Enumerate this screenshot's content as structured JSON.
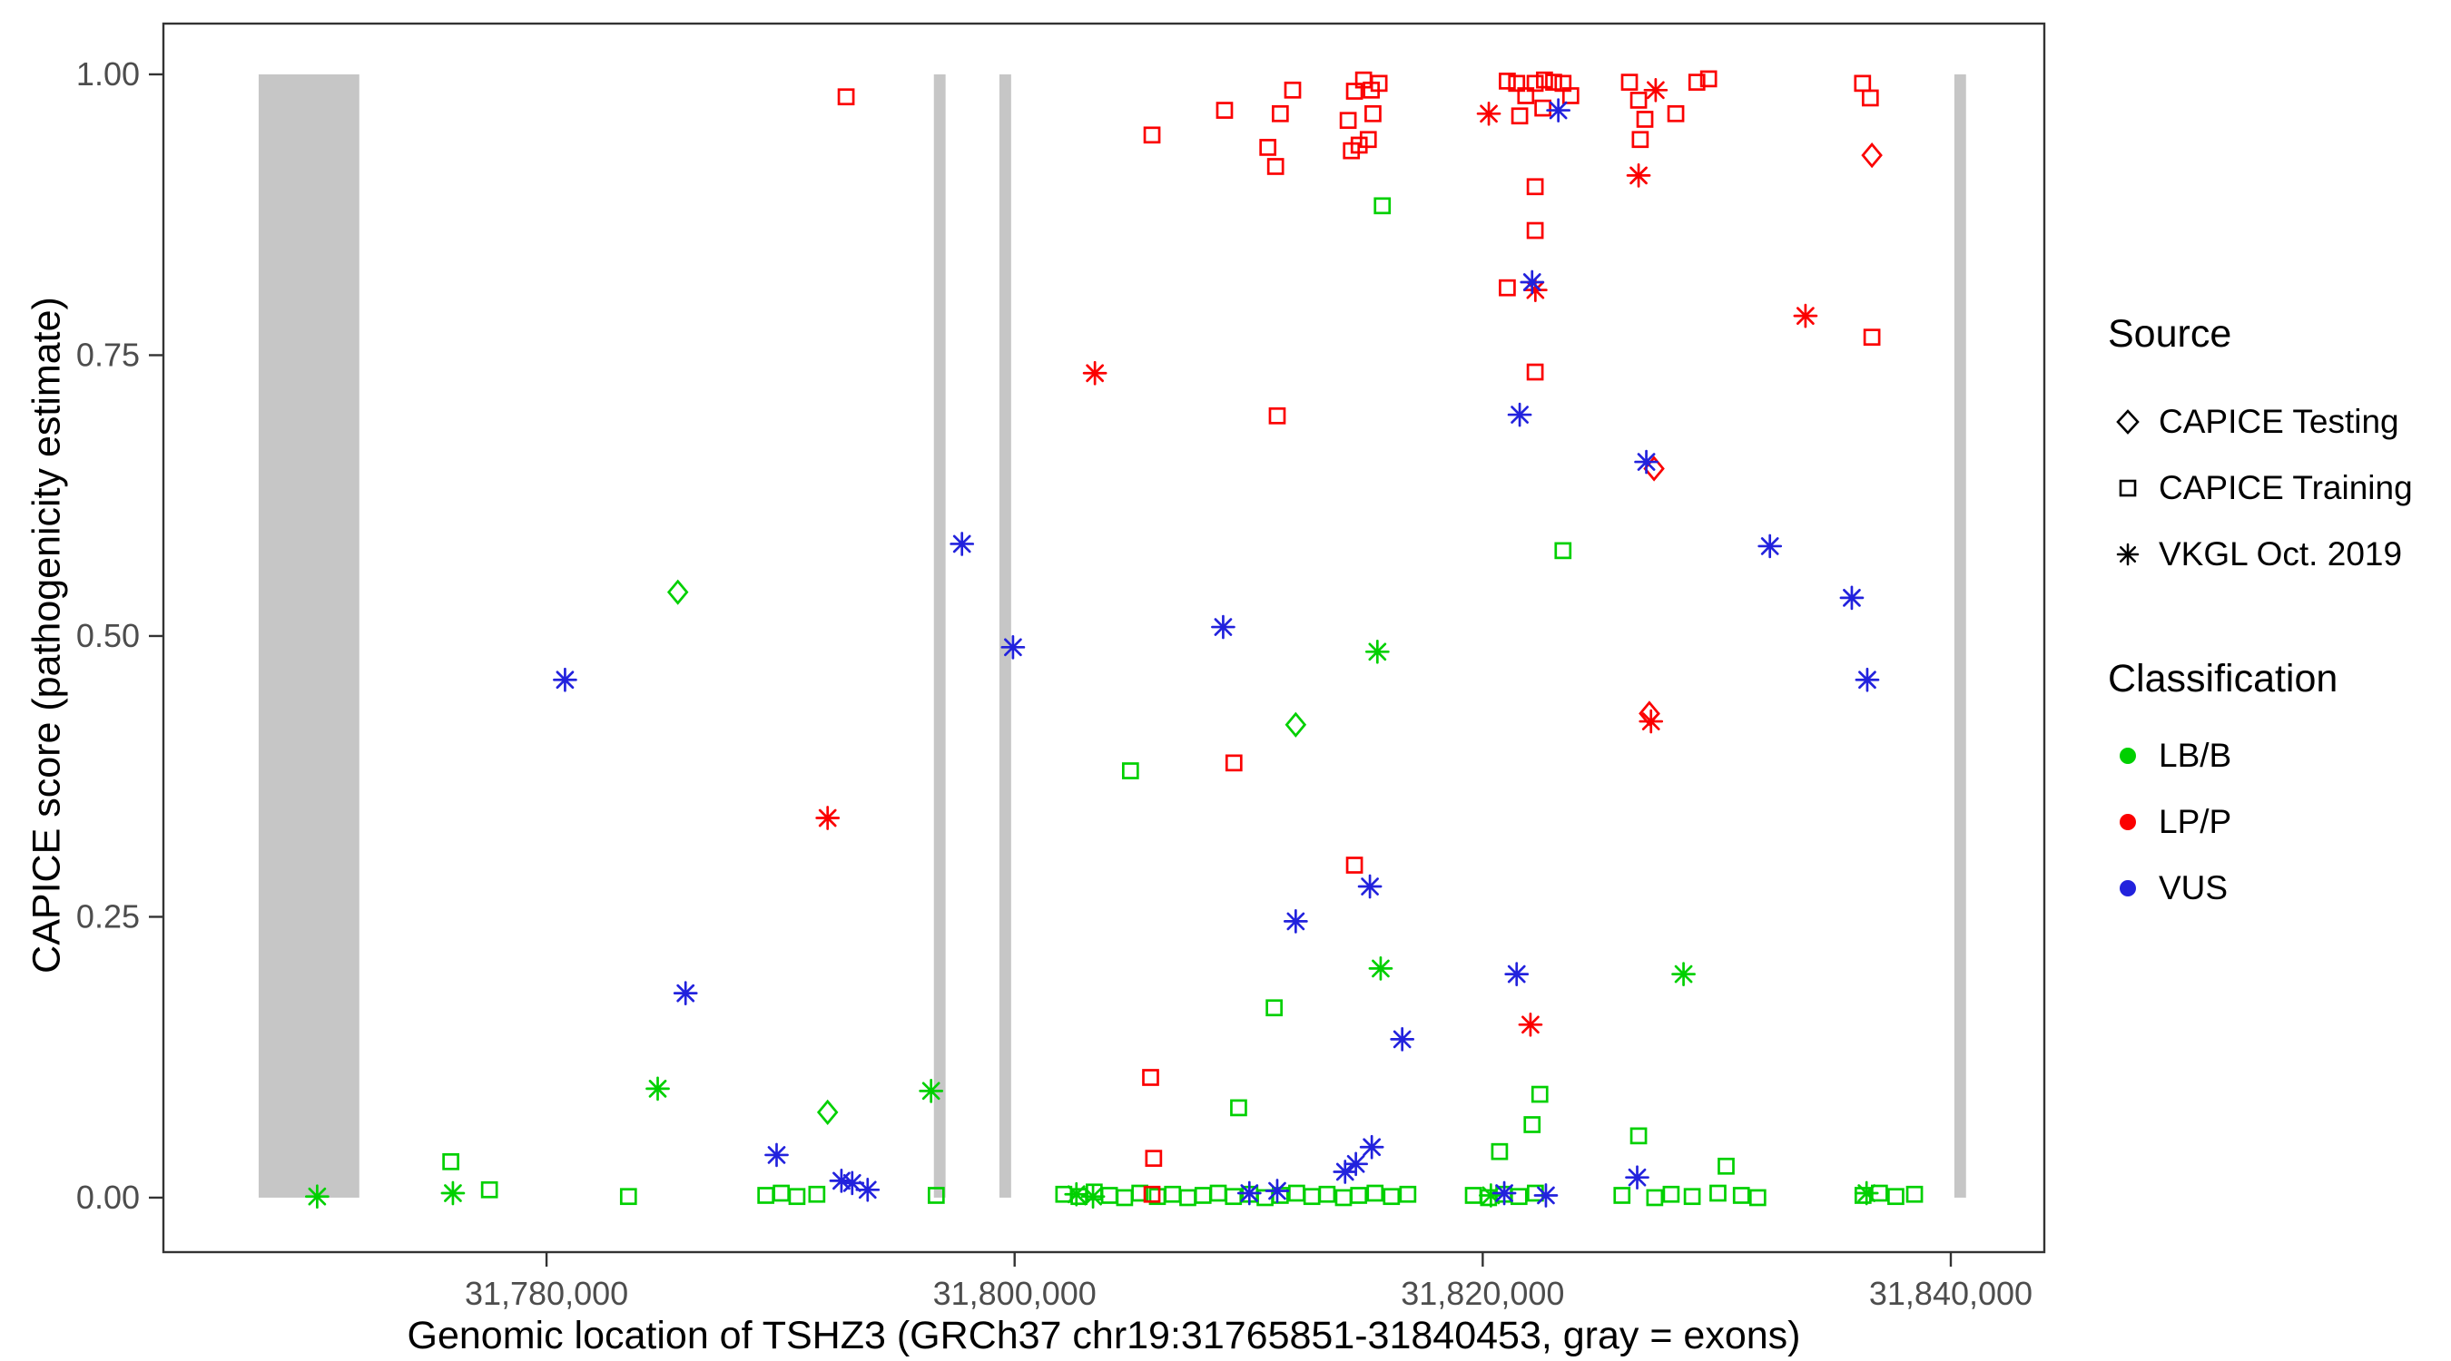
{
  "chart_data": {
    "type": "scatter",
    "title": "",
    "xlabel": "Genomic location of TSHZ3 (GRCh37 chr19:31765851-31840453, gray = exons)",
    "ylabel": "CAPICE score (pathogenicity estimate)",
    "xlim": [
      31763630,
      31843995
    ],
    "ylim": [
      -0.0485,
      1.0452
    ],
    "x_ticks": [
      {
        "value": 31780000,
        "label": "31,780,000"
      },
      {
        "value": 31800000,
        "label": "31,800,000"
      },
      {
        "value": 31820000,
        "label": "31,820,000"
      },
      {
        "value": 31840000,
        "label": "31,840,000"
      }
    ],
    "y_ticks": [
      {
        "value": 0.0,
        "label": "0.00"
      },
      {
        "value": 0.25,
        "label": "0.25"
      },
      {
        "value": 0.5,
        "label": "0.50"
      },
      {
        "value": 0.75,
        "label": "0.75"
      },
      {
        "value": 1.0,
        "label": "1.00"
      }
    ],
    "grid": false,
    "exon_color": "#c6c6c6",
    "exons": [
      [
        31767700,
        31772000
      ],
      [
        31796550,
        31797050
      ],
      [
        31799350,
        31799850
      ],
      [
        31840150,
        31840650
      ]
    ],
    "legend": {
      "position": "right",
      "source_title": "Source",
      "sources": [
        {
          "id": "testing",
          "label": "CAPICE Testing",
          "marker": "diamond"
        },
        {
          "id": "training",
          "label": "CAPICE Training",
          "marker": "square"
        },
        {
          "id": "vkgl",
          "label": "VKGL Oct. 2019",
          "marker": "asterisk"
        }
      ],
      "class_title": "Classification",
      "classes": [
        {
          "id": "LB/B",
          "label": "LB/B",
          "color": "#00d000"
        },
        {
          "id": "LP/P",
          "label": "LP/P",
          "color": "#fb0000"
        },
        {
          "id": "VUS",
          "label": "VUS",
          "color": "#2222dd"
        }
      ]
    },
    "points": [
      [
        31770200,
        0.001,
        "vkgl",
        "LB/B"
      ],
      [
        31776000,
        0.004,
        "vkgl",
        "LB/B"
      ],
      [
        31784750,
        0.097,
        "vkgl",
        "LB/B"
      ],
      [
        31796430,
        0.095,
        "vkgl",
        "LB/B"
      ],
      [
        31815500,
        0.486,
        "vkgl",
        "LB/B"
      ],
      [
        31815640,
        0.204,
        "vkgl",
        "LB/B"
      ],
      [
        31828580,
        0.199,
        "vkgl",
        "LB/B"
      ],
      [
        31802640,
        0.003,
        "vkgl",
        "LB/B"
      ],
      [
        31803350,
        0.001,
        "vkgl",
        "LB/B"
      ],
      [
        31820350,
        0.002,
        "vkgl",
        "LB/B"
      ],
      [
        31836400,
        0.004,
        "vkgl",
        "LB/B"
      ],
      [
        31785610,
        0.539,
        "testing",
        "LB/B"
      ],
      [
        31792010,
        0.076,
        "testing",
        "LB/B"
      ],
      [
        31812010,
        0.421,
        "testing",
        "LB/B"
      ],
      [
        31775910,
        0.032,
        "training",
        "LB/B"
      ],
      [
        31777560,
        0.007,
        "training",
        "LB/B"
      ],
      [
        31783500,
        0.001,
        "training",
        "LB/B"
      ],
      [
        31804950,
        0.38,
        "training",
        "LB/B"
      ],
      [
        31809570,
        0.08,
        "training",
        "LB/B"
      ],
      [
        31811090,
        0.169,
        "training",
        "LB/B"
      ],
      [
        31815710,
        0.883,
        "training",
        "LB/B"
      ],
      [
        31823430,
        0.576,
        "training",
        "LB/B"
      ],
      [
        31822440,
        0.092,
        "training",
        "LB/B"
      ],
      [
        31822110,
        0.065,
        "training",
        "LB/B"
      ],
      [
        31820720,
        0.041,
        "training",
        "LB/B"
      ],
      [
        31826660,
        0.055,
        "training",
        "LB/B"
      ],
      [
        31830400,
        0.028,
        "training",
        "LB/B"
      ],
      [
        31789370,
        0.002,
        "training",
        "LB/B"
      ],
      [
        31790030,
        0.004,
        "training",
        "LB/B"
      ],
      [
        31790700,
        0.001,
        "training",
        "LB/B"
      ],
      [
        31791550,
        0.003,
        "training",
        "LB/B"
      ],
      [
        31796650,
        0.002,
        "training",
        "LB/B"
      ],
      [
        31802100,
        0.003,
        "training",
        "LB/B"
      ],
      [
        31802750,
        0.001,
        "training",
        "LB/B"
      ],
      [
        31803400,
        0.005,
        "training",
        "LB/B"
      ],
      [
        31804050,
        0.002,
        "training",
        "LB/B"
      ],
      [
        31804700,
        0.0,
        "training",
        "LB/B"
      ],
      [
        31805350,
        0.004,
        "training",
        "LB/B"
      ],
      [
        31806100,
        0.001,
        "training",
        "LB/B"
      ],
      [
        31806750,
        0.003,
        "training",
        "LB/B"
      ],
      [
        31807400,
        0.0,
        "training",
        "LB/B"
      ],
      [
        31808050,
        0.002,
        "training",
        "LB/B"
      ],
      [
        31808700,
        0.004,
        "training",
        "LB/B"
      ],
      [
        31809350,
        0.001,
        "training",
        "LB/B"
      ],
      [
        31810050,
        0.003,
        "training",
        "LB/B"
      ],
      [
        31810700,
        0.0,
        "training",
        "LB/B"
      ],
      [
        31811350,
        0.002,
        "training",
        "LB/B"
      ],
      [
        31812050,
        0.004,
        "training",
        "LB/B"
      ],
      [
        31812700,
        0.001,
        "training",
        "LB/B"
      ],
      [
        31813350,
        0.003,
        "training",
        "LB/B"
      ],
      [
        31814050,
        0.0,
        "training",
        "LB/B"
      ],
      [
        31814700,
        0.002,
        "training",
        "LB/B"
      ],
      [
        31815400,
        0.004,
        "training",
        "LB/B"
      ],
      [
        31816100,
        0.001,
        "training",
        "LB/B"
      ],
      [
        31816800,
        0.003,
        "training",
        "LB/B"
      ],
      [
        31819600,
        0.002,
        "training",
        "LB/B"
      ],
      [
        31820250,
        0.0,
        "training",
        "LB/B"
      ],
      [
        31820900,
        0.003,
        "training",
        "LB/B"
      ],
      [
        31821550,
        0.001,
        "training",
        "LB/B"
      ],
      [
        31822250,
        0.004,
        "training",
        "LB/B"
      ],
      [
        31825950,
        0.002,
        "training",
        "LB/B"
      ],
      [
        31827350,
        0.0,
        "training",
        "LB/B"
      ],
      [
        31828050,
        0.003,
        "training",
        "LB/B"
      ],
      [
        31828950,
        0.001,
        "training",
        "LB/B"
      ],
      [
        31830050,
        0.004,
        "training",
        "LB/B"
      ],
      [
        31831050,
        0.002,
        "training",
        "LB/B"
      ],
      [
        31831750,
        0.0,
        "training",
        "LB/B"
      ],
      [
        31836250,
        0.002,
        "training",
        "LB/B"
      ],
      [
        31836950,
        0.004,
        "training",
        "LB/B"
      ],
      [
        31837650,
        0.001,
        "training",
        "LB/B"
      ],
      [
        31838450,
        0.003,
        "training",
        "LB/B"
      ],
      [
        31792010,
        0.338,
        "vkgl",
        "LP/P"
      ],
      [
        31803430,
        0.734,
        "vkgl",
        "LP/P"
      ],
      [
        31820260,
        0.965,
        "vkgl",
        "LP/P"
      ],
      [
        31826660,
        0.91,
        "vkgl",
        "LP/P"
      ],
      [
        31827390,
        0.986,
        "vkgl",
        "LP/P"
      ],
      [
        31822040,
        0.154,
        "vkgl",
        "LP/P"
      ],
      [
        31827190,
        0.424,
        "vkgl",
        "LP/P"
      ],
      [
        31833790,
        0.785,
        "vkgl",
        "LP/P"
      ],
      [
        31822250,
        0.808,
        "vkgl",
        "LP/P"
      ],
      [
        31836630,
        0.928,
        "testing",
        "LP/P"
      ],
      [
        31827320,
        0.649,
        "testing",
        "LP/P"
      ],
      [
        31827120,
        0.431,
        "testing",
        "LP/P"
      ],
      [
        31792800,
        0.98,
        "training",
        "LP/P"
      ],
      [
        31805870,
        0.946,
        "training",
        "LP/P"
      ],
      [
        31808970,
        0.968,
        "training",
        "LP/P"
      ],
      [
        31810820,
        0.935,
        "training",
        "LP/P"
      ],
      [
        31811350,
        0.965,
        "training",
        "LP/P"
      ],
      [
        31811880,
        0.986,
        "training",
        "LP/P"
      ],
      [
        31811150,
        0.918,
        "training",
        "LP/P"
      ],
      [
        31814250,
        0.959,
        "training",
        "LP/P"
      ],
      [
        31814520,
        0.985,
        "training",
        "LP/P"
      ],
      [
        31814910,
        0.995,
        "training",
        "LP/P"
      ],
      [
        31815240,
        0.986,
        "training",
        "LP/P"
      ],
      [
        31815570,
        0.992,
        "training",
        "LP/P"
      ],
      [
        31814720,
        0.937,
        "training",
        "LP/P"
      ],
      [
        31815110,
        0.942,
        "training",
        "LP/P"
      ],
      [
        31814390,
        0.932,
        "training",
        "LP/P"
      ],
      [
        31815310,
        0.965,
        "training",
        "LP/P"
      ],
      [
        31821050,
        0.994,
        "training",
        "LP/P"
      ],
      [
        31821450,
        0.992,
        "training",
        "LP/P"
      ],
      [
        31821840,
        0.981,
        "training",
        "LP/P"
      ],
      [
        31822240,
        0.992,
        "training",
        "LP/P"
      ],
      [
        31822640,
        0.995,
        "training",
        "LP/P"
      ],
      [
        31823030,
        0.993,
        "training",
        "LP/P"
      ],
      [
        31823430,
        0.992,
        "training",
        "LP/P"
      ],
      [
        31823760,
        0.981,
        "training",
        "LP/P"
      ],
      [
        31821580,
        0.963,
        "training",
        "LP/P"
      ],
      [
        31822570,
        0.97,
        "training",
        "LP/P"
      ],
      [
        31822240,
        0.9,
        "training",
        "LP/P"
      ],
      [
        31822240,
        0.861,
        "training",
        "LP/P"
      ],
      [
        31821050,
        0.81,
        "training",
        "LP/P"
      ],
      [
        31822240,
        0.735,
        "training",
        "LP/P"
      ],
      [
        31809370,
        0.387,
        "training",
        "LP/P"
      ],
      [
        31814520,
        0.296,
        "training",
        "LP/P"
      ],
      [
        31811220,
        0.696,
        "training",
        "LP/P"
      ],
      [
        31805810,
        0.107,
        "training",
        "LP/P"
      ],
      [
        31805940,
        0.035,
        "training",
        "LP/P"
      ],
      [
        31805870,
        0.003,
        "training",
        "LP/P"
      ],
      [
        31826270,
        0.993,
        "training",
        "LP/P"
      ],
      [
        31826660,
        0.977,
        "training",
        "LP/P"
      ],
      [
        31826930,
        0.96,
        "training",
        "LP/P"
      ],
      [
        31826730,
        0.942,
        "training",
        "LP/P"
      ],
      [
        31828250,
        0.965,
        "training",
        "LP/P"
      ],
      [
        31829150,
        0.993,
        "training",
        "LP/P"
      ],
      [
        31829650,
        0.996,
        "training",
        "LP/P"
      ],
      [
        31836230,
        0.992,
        "training",
        "LP/P"
      ],
      [
        31836560,
        0.979,
        "training",
        "LP/P"
      ],
      [
        31836630,
        0.766,
        "training",
        "LP/P"
      ],
      [
        31780790,
        0.461,
        "vkgl",
        "VUS"
      ],
      [
        31785940,
        0.182,
        "vkgl",
        "VUS"
      ],
      [
        31789830,
        0.038,
        "vkgl",
        "VUS"
      ],
      [
        31792600,
        0.015,
        "vkgl",
        "VUS"
      ],
      [
        31793060,
        0.013,
        "vkgl",
        "VUS"
      ],
      [
        31793720,
        0.007,
        "vkgl",
        "VUS"
      ],
      [
        31797750,
        0.582,
        "vkgl",
        "VUS"
      ],
      [
        31799930,
        0.49,
        "vkgl",
        "VUS"
      ],
      [
        31808910,
        0.508,
        "vkgl",
        "VUS"
      ],
      [
        31812010,
        0.246,
        "vkgl",
        "VUS"
      ],
      [
        31815180,
        0.277,
        "vkgl",
        "VUS"
      ],
      [
        31816560,
        0.141,
        "vkgl",
        "VUS"
      ],
      [
        31821450,
        0.199,
        "vkgl",
        "VUS"
      ],
      [
        31821580,
        0.697,
        "vkgl",
        "VUS"
      ],
      [
        31822110,
        0.815,
        "vkgl",
        "VUS"
      ],
      [
        31823230,
        0.968,
        "vkgl",
        "VUS"
      ],
      [
        31826990,
        0.655,
        "vkgl",
        "VUS"
      ],
      [
        31832270,
        0.58,
        "vkgl",
        "VUS"
      ],
      [
        31835770,
        0.534,
        "vkgl",
        "VUS"
      ],
      [
        31836430,
        0.461,
        "vkgl",
        "VUS"
      ],
      [
        31826600,
        0.018,
        "vkgl",
        "VUS"
      ],
      [
        31810030,
        0.004,
        "vkgl",
        "VUS"
      ],
      [
        31811220,
        0.006,
        "vkgl",
        "VUS"
      ],
      [
        31814120,
        0.023,
        "vkgl",
        "VUS"
      ],
      [
        31814580,
        0.03,
        "vkgl",
        "VUS"
      ],
      [
        31815260,
        0.045,
        "vkgl",
        "VUS"
      ],
      [
        31820920,
        0.004,
        "vkgl",
        "VUS"
      ],
      [
        31822700,
        0.002,
        "vkgl",
        "VUS"
      ]
    ]
  }
}
